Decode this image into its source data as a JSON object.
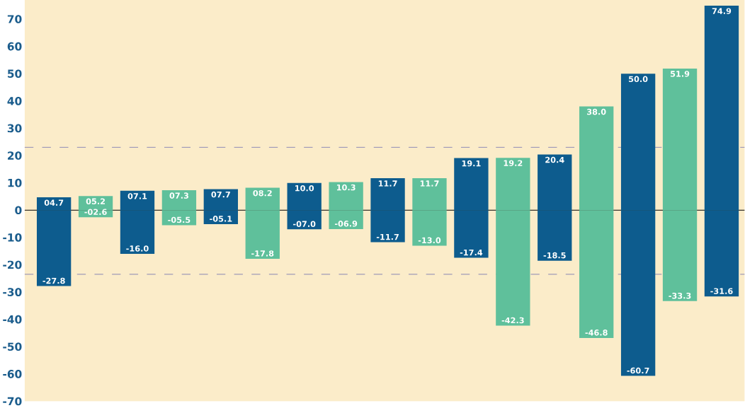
{
  "chart_data": {
    "type": "bar",
    "stacked": true,
    "categories": [
      null,
      null,
      null,
      null,
      null,
      null,
      null,
      null,
      null,
      null,
      null,
      null,
      null,
      null,
      null,
      null,
      null
    ],
    "series": [
      {
        "colors": [
          "#0d5c8e",
          "#5fc09b",
          "#0d5c8e",
          "#5fc09b",
          "#0d5c8e",
          "#5fc09b",
          "#0d5c8e",
          "#5fc09b",
          "#0d5c8e",
          "#5fc09b",
          "#0d5c8e",
          "#5fc09b",
          "#0d5c8e",
          "#5fc09b",
          "#0d5c8e",
          "#5fc09b",
          "#0d5c8e"
        ],
        "values": [
          4.7,
          5.2,
          7.1,
          7.3,
          7.7,
          8.2,
          10.0,
          10.3,
          11.7,
          11.7,
          19.1,
          19.2,
          20.4,
          38.0,
          50.0,
          51.9,
          74.9
        ],
        "value_labels": [
          "04.7",
          "05.2",
          "07.1",
          "07.3",
          "07.7",
          "08.2",
          "10.0",
          "10.3",
          "11.7",
          "11.7",
          "19.1",
          "19.2",
          "20.4",
          "38.0",
          "50.0",
          "51.9",
          "74.9"
        ]
      },
      {
        "colors": [
          "#0d5c8e",
          "#5fc09b",
          "#0d5c8e",
          "#5fc09b",
          "#0d5c8e",
          "#5fc09b",
          "#0d5c8e",
          "#5fc09b",
          "#0d5c8e",
          "#5fc09b",
          "#0d5c8e",
          "#5fc09b",
          "#0d5c8e",
          "#5fc09b",
          "#0d5c8e",
          "#5fc09b",
          "#0d5c8e"
        ],
        "values": [
          -27.8,
          -2.6,
          -16.0,
          -5.5,
          -5.1,
          -17.8,
          -7.0,
          -6.9,
          -11.7,
          -13.0,
          -17.4,
          -42.3,
          -18.5,
          -46.8,
          -60.7,
          -33.3,
          -31.6
        ],
        "value_labels": [
          "-27.8",
          "-02.6",
          "-16.0",
          "-05.5",
          "-05.1",
          "-17.8",
          "-07.0",
          "-06.9",
          "-11.7",
          "-13.0",
          "-17.4",
          "-42.3",
          "-18.5",
          "-46.8",
          "-60.7",
          "-33.3",
          "-31.6"
        ]
      }
    ],
    "ylim": [
      -70,
      77
    ],
    "yticks": [
      -70,
      -60,
      -50,
      -40,
      -30,
      -20,
      -10,
      0,
      10,
      20,
      30,
      40,
      50,
      60,
      70
    ],
    "ref_lines": [
      {
        "axis": "y",
        "value": 0,
        "color": "#000000",
        "line_style": "solid"
      },
      {
        "axis": "y",
        "value": 23,
        "color": "#a09ab8",
        "line_style": "dashed"
      },
      {
        "axis": "y",
        "value": -23.5,
        "color": "#a09ab8",
        "line_style": "dashed"
      }
    ]
  }
}
